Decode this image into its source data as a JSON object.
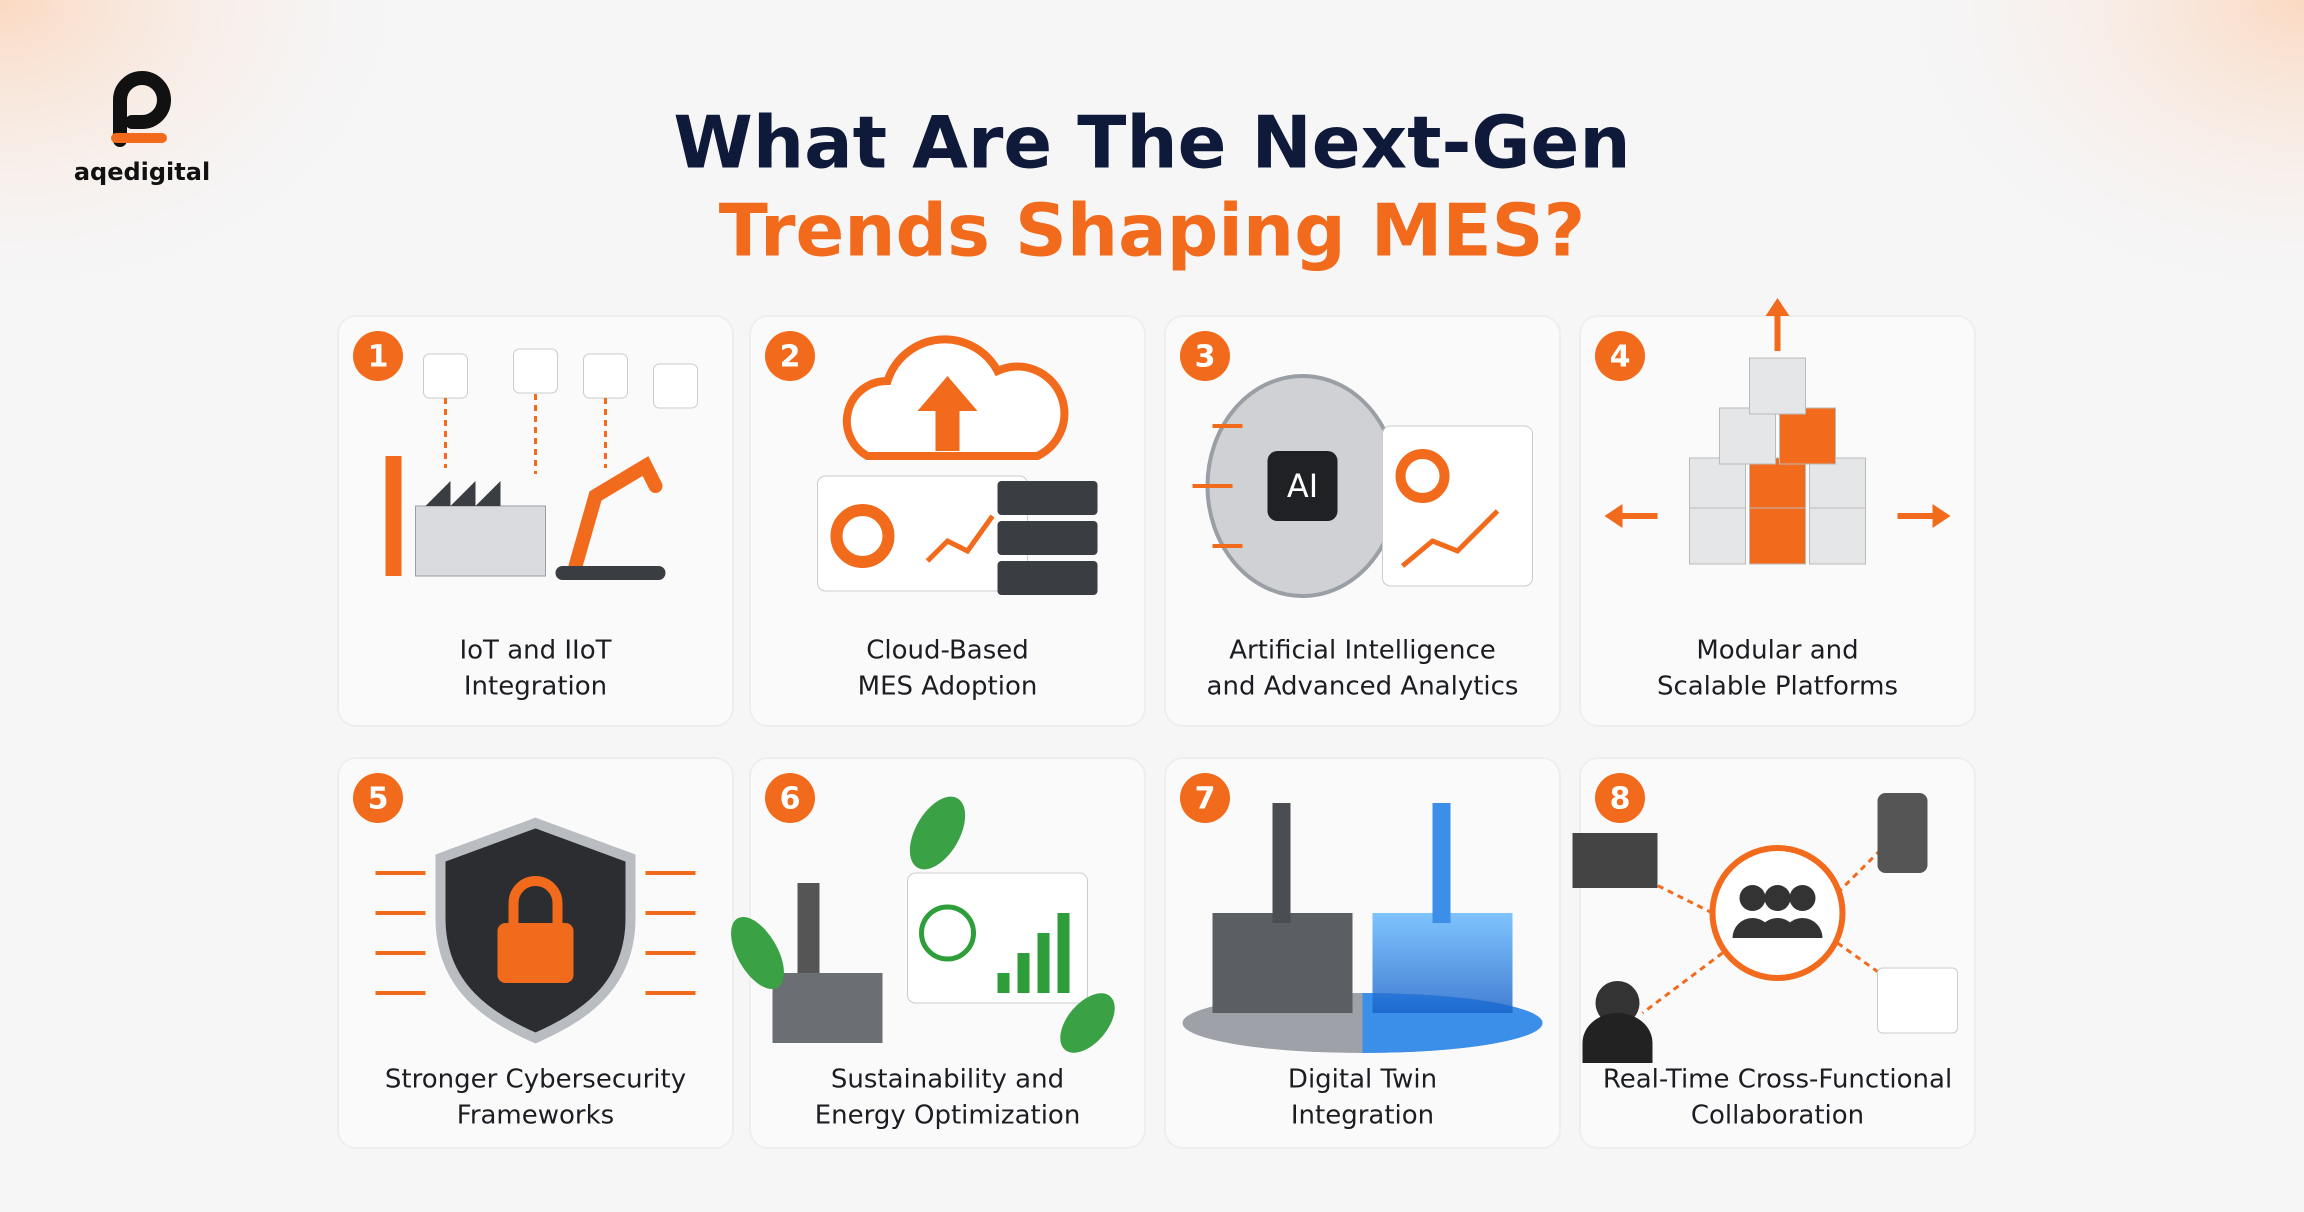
{
  "logo": {
    "text": "aqedigital"
  },
  "header": {
    "title_line1": "What Are The Next-Gen",
    "title_line2": "Trends Shaping MES?"
  },
  "cards": [
    {
      "number": 1,
      "lines": [
        "IoT and IIoT",
        "Integration"
      ]
    },
    {
      "number": 2,
      "lines": [
        "Cloud-Based",
        "MES Adoption"
      ]
    },
    {
      "number": 3,
      "lines": [
        "Artificial Intelligence",
        "and Advanced Analytics"
      ],
      "icon_text": "AI"
    },
    {
      "number": 4,
      "lines": [
        "Modular and",
        "Scalable Platforms"
      ]
    },
    {
      "number": 5,
      "lines": [
        "Stronger Cybersecurity",
        "Frameworks"
      ]
    },
    {
      "number": 6,
      "lines": [
        "Sustainability and",
        "Energy Optimization"
      ]
    },
    {
      "number": 7,
      "lines": [
        "Digital Twin",
        "Integration"
      ]
    },
    {
      "number": 8,
      "lines": [
        "Real-Time Cross-Functional",
        "Collaboration"
      ]
    }
  ]
}
